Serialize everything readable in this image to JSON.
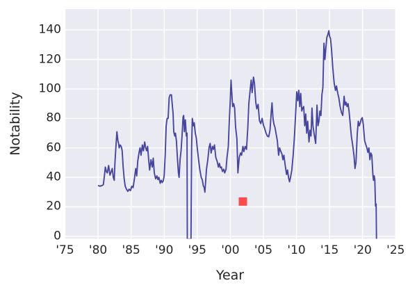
{
  "figure": {
    "background": "#ffffff",
    "plot_background": "#eaeaf2",
    "grid_color": "#ffffff",
    "text_color": "#262626"
  },
  "chart_data": {
    "type": "line",
    "title": "",
    "xlabel": "Year",
    "ylabel": "Notability",
    "grid": true,
    "legend": null,
    "xlim_view": [
      1975,
      2025
    ],
    "ylim_view": [
      -1.7,
      154.2
    ],
    "x_ticks": [
      {
        "value": 1975,
        "label": "'75"
      },
      {
        "value": 1980,
        "label": "'80"
      },
      {
        "value": 1985,
        "label": "'85"
      },
      {
        "value": 1990,
        "label": "'90"
      },
      {
        "value": 1995,
        "label": "'95"
      },
      {
        "value": 2000,
        "label": "'00"
      },
      {
        "value": 2005,
        "label": "'05"
      },
      {
        "value": 2010,
        "label": "'10"
      },
      {
        "value": 2015,
        "label": "'15"
      },
      {
        "value": 2020,
        "label": "'20"
      },
      {
        "value": 2025,
        "label": "'25"
      }
    ],
    "y_ticks": [
      {
        "value": 0,
        "label": "0"
      },
      {
        "value": 20,
        "label": "20"
      },
      {
        "value": 40,
        "label": "40"
      },
      {
        "value": 60,
        "label": "60"
      },
      {
        "value": 80,
        "label": "80"
      },
      {
        "value": 100,
        "label": "100"
      },
      {
        "value": 120,
        "label": "120"
      },
      {
        "value": 140,
        "label": "140"
      }
    ],
    "series": [
      {
        "name": "notability-line",
        "kind": "line",
        "color": "#45469c",
        "stroke_width": 1.9,
        "points": [
          [
            1980.0,
            34.5
          ],
          [
            1980.3,
            34
          ],
          [
            1980.6,
            34.5
          ],
          [
            1980.8,
            35
          ],
          [
            1981.0,
            42.5
          ],
          [
            1981.1,
            47
          ],
          [
            1981.25,
            44
          ],
          [
            1981.4,
            43
          ],
          [
            1981.6,
            48
          ],
          [
            1981.8,
            41.5
          ],
          [
            1982.0,
            44
          ],
          [
            1982.15,
            46
          ],
          [
            1982.3,
            40
          ],
          [
            1982.45,
            38
          ],
          [
            1982.55,
            49
          ],
          [
            1982.7,
            61
          ],
          [
            1982.85,
            71
          ],
          [
            1983.0,
            65
          ],
          [
            1983.1,
            63
          ],
          [
            1983.2,
            60
          ],
          [
            1983.35,
            62
          ],
          [
            1983.5,
            61
          ],
          [
            1983.65,
            58
          ],
          [
            1983.8,
            47
          ],
          [
            1983.95,
            39
          ],
          [
            1984.1,
            34
          ],
          [
            1984.3,
            32
          ],
          [
            1984.5,
            30.5
          ],
          [
            1984.7,
            32
          ],
          [
            1984.9,
            31
          ],
          [
            1985.1,
            34
          ],
          [
            1985.3,
            33
          ],
          [
            1985.5,
            39
          ],
          [
            1985.7,
            46
          ],
          [
            1985.85,
            41
          ],
          [
            1986.0,
            51
          ],
          [
            1986.2,
            57
          ],
          [
            1986.35,
            60
          ],
          [
            1986.5,
            55
          ],
          [
            1986.7,
            62
          ],
          [
            1986.85,
            58
          ],
          [
            1987.05,
            64
          ],
          [
            1987.2,
            60
          ],
          [
            1987.35,
            58
          ],
          [
            1987.5,
            61
          ],
          [
            1987.65,
            52
          ],
          [
            1987.8,
            45
          ],
          [
            1988.0,
            52
          ],
          [
            1988.2,
            47
          ],
          [
            1988.35,
            53
          ],
          [
            1988.5,
            43
          ],
          [
            1988.7,
            39
          ],
          [
            1988.9,
            41
          ],
          [
            1989.05,
            38.5
          ],
          [
            1989.2,
            40
          ],
          [
            1989.4,
            36
          ],
          [
            1989.55,
            38
          ],
          [
            1989.7,
            36.5
          ],
          [
            1989.85,
            37.5
          ],
          [
            1990.0,
            41
          ],
          [
            1990.15,
            55
          ],
          [
            1990.3,
            75
          ],
          [
            1990.45,
            80
          ],
          [
            1990.6,
            80
          ],
          [
            1990.75,
            94
          ],
          [
            1990.9,
            96
          ],
          [
            1991.1,
            96
          ],
          [
            1991.25,
            88
          ],
          [
            1991.35,
            83
          ],
          [
            1991.45,
            71
          ],
          [
            1991.6,
            68
          ],
          [
            1991.7,
            70
          ],
          [
            1991.85,
            65
          ],
          [
            1992.0,
            53
          ],
          [
            1992.15,
            43
          ],
          [
            1992.25,
            40
          ],
          [
            1992.4,
            52
          ],
          [
            1992.55,
            58
          ],
          [
            1992.7,
            68
          ],
          [
            1992.85,
            81
          ],
          [
            1992.95,
            82
          ],
          [
            1993.05,
            71
          ],
          [
            1993.2,
            79
          ],
          [
            1993.35,
            68
          ],
          [
            1993.45,
            70
          ],
          [
            1993.5,
            -2
          ],
          [
            1994.05,
            -2
          ],
          [
            1994.15,
            60
          ],
          [
            1994.25,
            80
          ],
          [
            1994.4,
            75
          ],
          [
            1994.55,
            77
          ],
          [
            1994.7,
            70
          ],
          [
            1994.85,
            67
          ],
          [
            1995.0,
            60
          ],
          [
            1995.2,
            52
          ],
          [
            1995.4,
            45
          ],
          [
            1995.6,
            40
          ],
          [
            1995.75,
            38.5
          ],
          [
            1995.9,
            34.5
          ],
          [
            1996.05,
            33
          ],
          [
            1996.15,
            30
          ],
          [
            1996.25,
            36
          ],
          [
            1996.4,
            45.5
          ],
          [
            1996.6,
            52
          ],
          [
            1996.8,
            60.5
          ],
          [
            1996.95,
            63
          ],
          [
            1997.1,
            56.5
          ],
          [
            1997.3,
            61
          ],
          [
            1997.45,
            59
          ],
          [
            1997.6,
            62
          ],
          [
            1997.8,
            53.5
          ],
          [
            1998.0,
            51
          ],
          [
            1998.2,
            47
          ],
          [
            1998.35,
            49.5
          ],
          [
            1998.5,
            46.5
          ],
          [
            1998.65,
            47
          ],
          [
            1998.8,
            44
          ],
          [
            1999.0,
            45.5
          ],
          [
            1999.15,
            43
          ],
          [
            1999.35,
            45.5
          ],
          [
            1999.5,
            53.5
          ],
          [
            1999.7,
            61
          ],
          [
            1999.85,
            79
          ],
          [
            2000.0,
            93
          ],
          [
            2000.1,
            106
          ],
          [
            2000.2,
            99
          ],
          [
            2000.35,
            88
          ],
          [
            2000.5,
            90
          ],
          [
            2000.65,
            87
          ],
          [
            2000.8,
            74
          ],
          [
            2001.0,
            66
          ],
          [
            2001.15,
            43
          ],
          [
            2001.35,
            53.5
          ],
          [
            2001.55,
            56.5
          ],
          [
            2001.7,
            55
          ],
          [
            2001.9,
            61
          ],
          [
            2002.05,
            57.5
          ],
          [
            2002.25,
            61
          ],
          [
            2002.45,
            59
          ],
          [
            2002.65,
            74
          ],
          [
            2002.8,
            90
          ],
          [
            2003.0,
            99
          ],
          [
            2003.15,
            106
          ],
          [
            2003.3,
            97.5
          ],
          [
            2003.5,
            108
          ],
          [
            2003.65,
            104
          ],
          [
            2003.85,
            91
          ],
          [
            2004.0,
            86.5
          ],
          [
            2004.2,
            89.5
          ],
          [
            2004.4,
            78.5
          ],
          [
            2004.6,
            76.5
          ],
          [
            2004.8,
            80
          ],
          [
            2005.0,
            75.5
          ],
          [
            2005.2,
            73
          ],
          [
            2005.4,
            70
          ],
          [
            2005.6,
            68
          ],
          [
            2005.8,
            67.5
          ],
          [
            2006.0,
            72
          ],
          [
            2006.2,
            85
          ],
          [
            2006.3,
            90.5
          ],
          [
            2006.45,
            80
          ],
          [
            2006.6,
            76
          ],
          [
            2006.75,
            74
          ],
          [
            2006.9,
            70
          ],
          [
            2007.1,
            65
          ],
          [
            2007.3,
            55
          ],
          [
            2007.45,
            60
          ],
          [
            2007.6,
            58
          ],
          [
            2007.8,
            56
          ],
          [
            2007.95,
            52
          ],
          [
            2008.1,
            55
          ],
          [
            2008.3,
            48
          ],
          [
            2008.5,
            42
          ],
          [
            2008.65,
            45
          ],
          [
            2008.8,
            40
          ],
          [
            2008.95,
            37
          ],
          [
            2009.1,
            40
          ],
          [
            2009.3,
            45
          ],
          [
            2009.5,
            55
          ],
          [
            2009.7,
            68
          ],
          [
            2009.9,
            85
          ],
          [
            2010.05,
            98
          ],
          [
            2010.2,
            92
          ],
          [
            2010.35,
            99
          ],
          [
            2010.5,
            88
          ],
          [
            2010.65,
            97
          ],
          [
            2010.8,
            85
          ],
          [
            2010.95,
            87
          ],
          [
            2011.1,
            88
          ],
          [
            2011.25,
            75
          ],
          [
            2011.4,
            83
          ],
          [
            2011.55,
            70
          ],
          [
            2011.7,
            78
          ],
          [
            2011.9,
            64
          ],
          [
            2012.05,
            72
          ],
          [
            2012.2,
            68
          ],
          [
            2012.35,
            87
          ],
          [
            2012.5,
            75
          ],
          [
            2012.65,
            70
          ],
          [
            2012.9,
            63
          ],
          [
            2013.1,
            89
          ],
          [
            2013.25,
            75
          ],
          [
            2013.4,
            78
          ],
          [
            2013.55,
            85
          ],
          [
            2013.7,
            82
          ],
          [
            2013.85,
            96
          ],
          [
            2014.0,
            101
          ],
          [
            2014.15,
            131
          ],
          [
            2014.3,
            120
          ],
          [
            2014.45,
            128
          ],
          [
            2014.6,
            135
          ],
          [
            2014.75,
            137
          ],
          [
            2014.9,
            139.5
          ],
          [
            2015.0,
            136
          ],
          [
            2015.15,
            134
          ],
          [
            2015.3,
            127
          ],
          [
            2015.5,
            114
          ],
          [
            2015.7,
            104
          ],
          [
            2015.9,
            99
          ],
          [
            2016.05,
            102
          ],
          [
            2016.25,
            97
          ],
          [
            2016.4,
            94
          ],
          [
            2016.6,
            88
          ],
          [
            2016.8,
            84
          ],
          [
            2017.0,
            82
          ],
          [
            2017.2,
            95
          ],
          [
            2017.35,
            89
          ],
          [
            2017.5,
            91
          ],
          [
            2017.65,
            88
          ],
          [
            2017.8,
            90
          ],
          [
            2017.95,
            85
          ],
          [
            2018.1,
            78
          ],
          [
            2018.3,
            68
          ],
          [
            2018.5,
            62
          ],
          [
            2018.7,
            55
          ],
          [
            2018.85,
            46
          ],
          [
            2019.0,
            50
          ],
          [
            2019.2,
            70
          ],
          [
            2019.35,
            78
          ],
          [
            2019.5,
            75
          ],
          [
            2019.65,
            77
          ],
          [
            2019.8,
            79.5
          ],
          [
            2019.95,
            80.5
          ],
          [
            2020.1,
            76
          ],
          [
            2020.3,
            65
          ],
          [
            2020.5,
            62
          ],
          [
            2020.65,
            60
          ],
          [
            2020.8,
            57
          ],
          [
            2020.95,
            60
          ],
          [
            2021.1,
            52
          ],
          [
            2021.25,
            56.5
          ],
          [
            2021.4,
            55
          ],
          [
            2021.55,
            42
          ],
          [
            2021.65,
            38
          ],
          [
            2021.75,
            41
          ],
          [
            2021.85,
            38.5
          ],
          [
            2021.95,
            20.5
          ],
          [
            2022.05,
            22
          ],
          [
            2022.1,
            -2
          ]
        ]
      },
      {
        "name": "outlier-marker",
        "kind": "scatter",
        "marker": "square",
        "color": "#fa4b4d",
        "size": 12,
        "points": [
          [
            2001.9,
            23.6
          ]
        ]
      }
    ]
  }
}
